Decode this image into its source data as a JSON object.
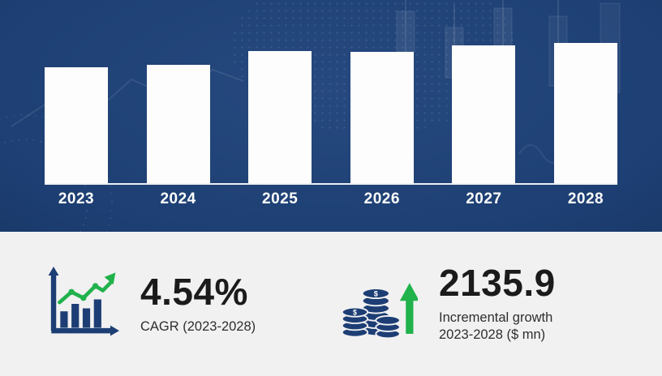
{
  "chart_data": {
    "type": "bar",
    "title": "",
    "categories": [
      "2023",
      "2024",
      "2025",
      "2026",
      "2027",
      "2028"
    ],
    "values": [
      143,
      146,
      163,
      162,
      170,
      173
    ],
    "values_note": "relative bar heights in px; no y-axis or value labels shown in image",
    "xlabel": "",
    "ylabel": "",
    "ylim": [
      0,
      173
    ],
    "gridlines": false,
    "legend": false,
    "bar_color": "#fdfdfd",
    "background_color": "#1d3f73"
  },
  "stats": {
    "cagr_value": "4.54%",
    "cagr_label": "CAGR (2023-2028)",
    "growth_value": "2135.9",
    "growth_label_line1": "Incremental growth",
    "growth_label_line2": "2023-2028 ($ mn)"
  },
  "icons": {
    "growth_chart_icon": "bar-chart-with-green-trend-arrow",
    "coins_icon": "coin-stacks-with-green-up-arrow"
  },
  "colors": {
    "navy": "#1d3e74",
    "accent_green": "#21b24b",
    "panel_bg": "#f1f1f2",
    "text_dark": "#1b1b1b",
    "bar_white": "#fdfdfd"
  }
}
